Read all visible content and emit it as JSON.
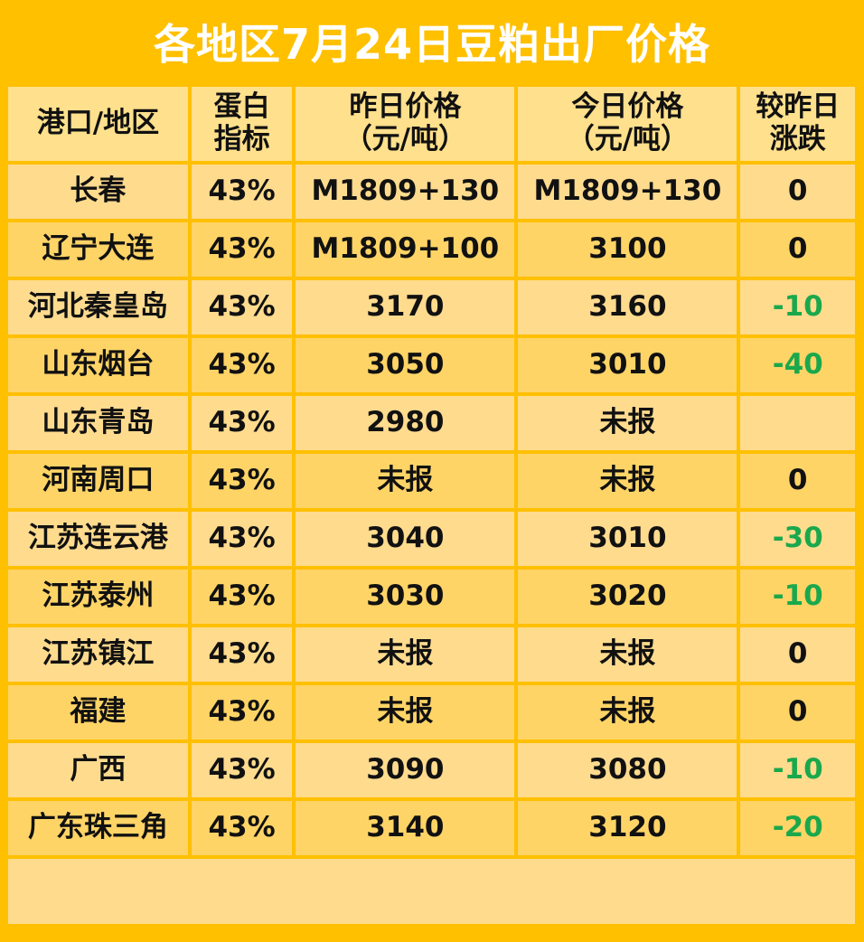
{
  "title": "各地区7月24日豆粕出厂价格",
  "header": {
    "region": "港口/地区",
    "protein_line1": "蛋白",
    "protein_line2": "指标",
    "yesterday_line1": "昨日价格",
    "yesterday_line2": "（元/吨）",
    "today_line1": "今日价格",
    "today_line2": "（元/吨）",
    "change_line1": "较昨日",
    "change_line2": "涨跌"
  },
  "rows": [
    {
      "region": "长春",
      "protein": "43%",
      "yesterday": "M1809+130",
      "today": "M1809+130",
      "change": "0"
    },
    {
      "region": "辽宁大连",
      "protein": "43%",
      "yesterday": "M1809+100",
      "today": "3100",
      "change": "0"
    },
    {
      "region": "河北秦皇岛",
      "protein": "43%",
      "yesterday": "3170",
      "today": "3160",
      "change": "-10"
    },
    {
      "region": "山东烟台",
      "protein": "43%",
      "yesterday": "3050",
      "today": "3010",
      "change": "-40"
    },
    {
      "region": "山东青岛",
      "protein": "43%",
      "yesterday": "2980",
      "today": "未报",
      "change": ""
    },
    {
      "region": "河南周口",
      "protein": "43%",
      "yesterday": "未报",
      "today": "未报",
      "change": "0"
    },
    {
      "region": "江苏连云港",
      "protein": "43%",
      "yesterday": "3040",
      "today": "3010",
      "change": "-30"
    },
    {
      "region": "江苏泰州",
      "protein": "43%",
      "yesterday": "3030",
      "today": "3020",
      "change": "-10"
    },
    {
      "region": "江苏镇江",
      "protein": "43%",
      "yesterday": "未报",
      "today": "未报",
      "change": "0"
    },
    {
      "region": "福建",
      "protein": "43%",
      "yesterday": "未报",
      "today": "未报",
      "change": "0"
    },
    {
      "region": "广西",
      "protein": "43%",
      "yesterday": "3090",
      "today": "3080",
      "change": "-10"
    },
    {
      "region": "广东珠三角",
      "protein": "43%",
      "yesterday": "3140",
      "today": "3120",
      "change": "-20"
    }
  ],
  "colors": {
    "background": "#ffc000",
    "header_cell": "#ffe08c",
    "row_light": "#ffdb8e",
    "row_dark": "#ffd466",
    "negative": "#1aa84c",
    "title_text": "#ffffff"
  }
}
